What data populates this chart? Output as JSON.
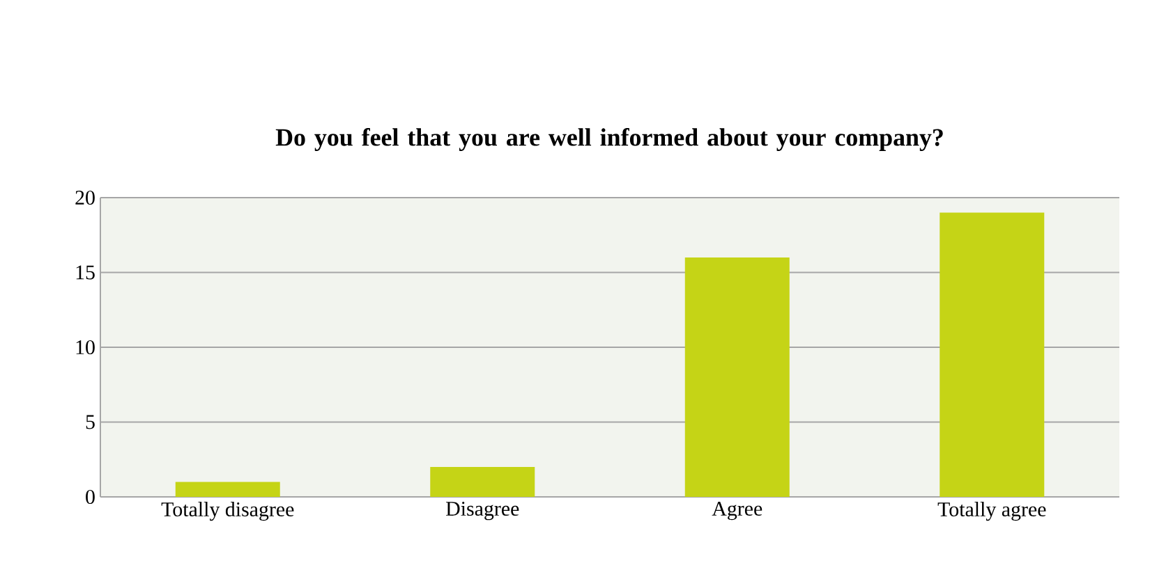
{
  "chart_data": {
    "type": "bar",
    "title": "Do you feel that you are well informed about your company?",
    "categories": [
      "Totally disagree",
      "Disagree",
      "Agree",
      "Totally agree"
    ],
    "values": [
      1,
      2,
      16,
      19
    ],
    "color": "#c5d416",
    "ylim": [
      0,
      20
    ],
    "yticks": [
      0,
      5,
      10,
      15,
      20
    ],
    "grid": "y"
  }
}
